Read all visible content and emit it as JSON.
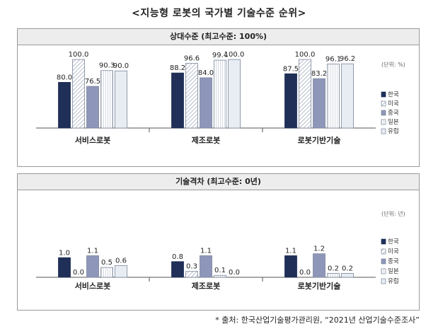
{
  "title": "<지능형 로봇의 국가별 기술수준 순위>",
  "source_note": "* 출처: 한국산업기술평가관리원, “2021년 산업기술수준조사”",
  "colors": {
    "korea": "#1f2f57",
    "usa": "#ffffff",
    "china": "#8e97ba",
    "japan": "#f2f2f2",
    "europe": "#e8edf4",
    "border": "#7a8599"
  },
  "chart_data": [
    {
      "type": "bar",
      "title": "상대수준 (최고수준: 100%)",
      "unit_label": "(단위: %)",
      "categories": [
        "서비스로봇",
        "제조로봇",
        "로봇기반기술"
      ],
      "series": [
        {
          "name": "한국",
          "key": "korea",
          "values": [
            80.0,
            88.2,
            87.5
          ],
          "labels": [
            "80.0",
            "88.2",
            "87.5"
          ]
        },
        {
          "name": "미국",
          "key": "usa",
          "values": [
            100.0,
            96.6,
            100.0
          ],
          "labels": [
            "100.0",
            "96.6",
            "100.0"
          ]
        },
        {
          "name": "중국",
          "key": "china",
          "values": [
            76.5,
            84.0,
            83.2
          ],
          "labels": [
            "76.5",
            "84.0",
            "83.2"
          ]
        },
        {
          "name": "일본",
          "key": "japan",
          "values": [
            90.3,
            99.4,
            96.1
          ],
          "labels": [
            "90.3",
            "99.4",
            "96.1"
          ]
        },
        {
          "name": "유럽",
          "key": "europe",
          "values": [
            90.0,
            100.0,
            96.2
          ],
          "labels": [
            "90.0",
            "100.0",
            "96.2"
          ]
        }
      ],
      "ylim": [
        40,
        105
      ],
      "legend": "right"
    },
    {
      "type": "bar",
      "title": "기술격차 (최고수준: 0년)",
      "unit_label": "(단위: 년)",
      "categories": [
        "서비스로봇",
        "제조로봇",
        "로봇기반기술"
      ],
      "series": [
        {
          "name": "한국",
          "key": "korea",
          "values": [
            1.0,
            0.8,
            1.1
          ],
          "labels": [
            "1.0",
            "0.8",
            "1.1"
          ]
        },
        {
          "name": "미국",
          "key": "usa",
          "values": [
            0.0,
            0.3,
            0.0
          ],
          "labels": [
            "0.0",
            "0.3",
            "0.0"
          ]
        },
        {
          "name": "중국",
          "key": "china",
          "values": [
            1.1,
            1.1,
            1.2
          ],
          "labels": [
            "1.1",
            "1.1",
            "1.2"
          ]
        },
        {
          "name": "일본",
          "key": "japan",
          "values": [
            0.5,
            0.1,
            0.2
          ],
          "labels": [
            "0.5",
            "0.1",
            "0.2"
          ]
        },
        {
          "name": "유럽",
          "key": "europe",
          "values": [
            0.6,
            0.0,
            0.2
          ],
          "labels": [
            "0.6",
            "0.0",
            "0.2"
          ]
        }
      ],
      "ylim": [
        0,
        4
      ],
      "legend": "right"
    }
  ]
}
